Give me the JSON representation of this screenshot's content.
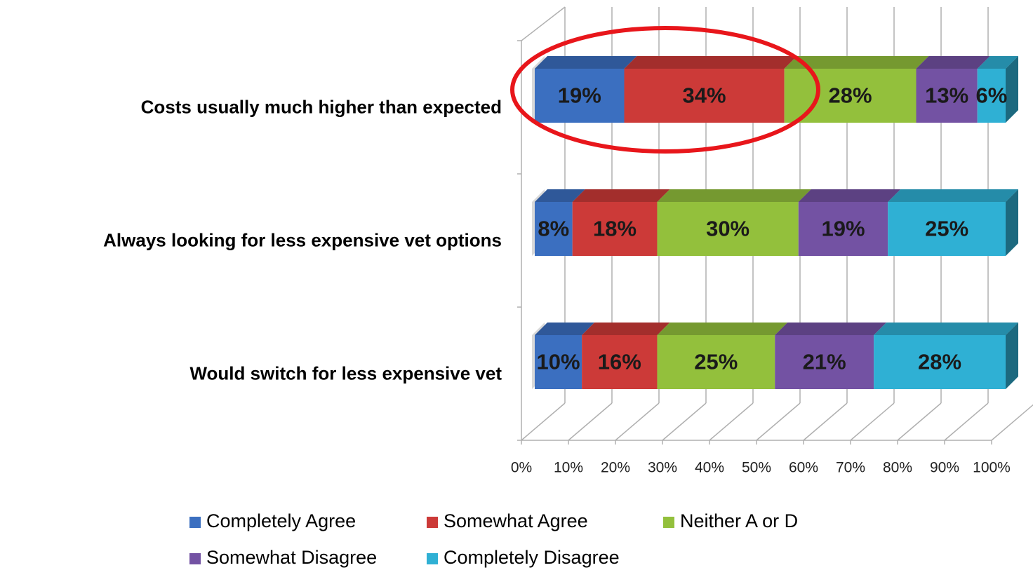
{
  "chart_data": {
    "type": "bar",
    "orientation": "horizontal",
    "stacked": true,
    "three_d": true,
    "categories": [
      "Costs usually much higher than expected",
      "Always looking for less expensive vet options",
      "Would switch for less expensive vet"
    ],
    "series": [
      {
        "name": "Completely Agree",
        "color": "#3b6fc0",
        "values": [
          19,
          8,
          10
        ],
        "value_labels": [
          "19%",
          "8%",
          "10%"
        ]
      },
      {
        "name": "Somewhat Agree",
        "color": "#cc3a38",
        "values": [
          34,
          18,
          16
        ],
        "value_labels": [
          "34%",
          "18%",
          "16%"
        ]
      },
      {
        "name": "Neither A or D",
        "color": "#93c03c",
        "values": [
          28,
          30,
          25
        ],
        "value_labels": [
          "28%",
          "30%",
          "25%"
        ]
      },
      {
        "name": "Somewhat Disagree",
        "color": "#7352a3",
        "values": [
          13,
          19,
          21
        ],
        "value_labels": [
          "13%",
          "19%",
          "21%"
        ]
      },
      {
        "name": "Completely Disagree",
        "color": "#2fb0d4",
        "values": [
          6,
          25,
          28
        ],
        "value_labels": [
          "6%",
          "25%",
          "28%"
        ]
      }
    ],
    "xlim": [
      0,
      100
    ],
    "xticks": [
      {
        "value": 0,
        "label": "0%"
      },
      {
        "value": 10,
        "label": "10%"
      },
      {
        "value": 20,
        "label": "20%"
      },
      {
        "value": 30,
        "label": "30%"
      },
      {
        "value": 40,
        "label": "40%"
      },
      {
        "value": 50,
        "label": "50%"
      },
      {
        "value": 60,
        "label": "60%"
      },
      {
        "value": 70,
        "label": "70%"
      },
      {
        "value": 80,
        "label": "80%"
      },
      {
        "value": 90,
        "label": "90%"
      },
      {
        "value": 100,
        "label": "100%"
      }
    ],
    "grid": true,
    "legend": "bottom"
  }
}
